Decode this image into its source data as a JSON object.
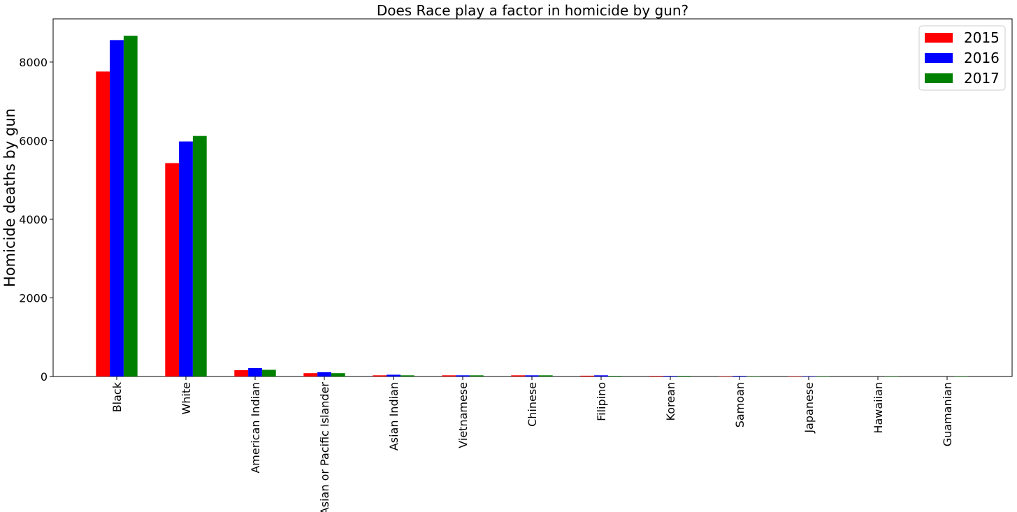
{
  "chart_data": {
    "type": "bar",
    "title": "Does Race play a factor in homicide by gun?",
    "xlabel": "",
    "ylabel": "Homicide deaths by gun",
    "ylim": [
      0,
      9100
    ],
    "yticks": [
      0,
      2000,
      4000,
      6000,
      8000
    ],
    "ytick_labels": [
      "0",
      "2000",
      "4000",
      "6000",
      "8000"
    ],
    "categories": [
      "Black",
      "White",
      "American Indian",
      "Asian or Pacific Islander",
      "Asian Indian",
      "Vietnamese",
      "Chinese",
      "Filipino",
      "Korean",
      "Samoan",
      "Japanese",
      "Hawaiian",
      "Guamanian"
    ],
    "series": [
      {
        "name": "2015",
        "color": "#ff0000",
        "values": [
          7760,
          5430,
          160,
          85,
          30,
          30,
          30,
          20,
          15,
          10,
          10,
          0,
          0
        ]
      },
      {
        "name": "2016",
        "color": "#0000ff",
        "values": [
          8560,
          5980,
          215,
          110,
          45,
          30,
          30,
          30,
          15,
          15,
          10,
          0,
          0
        ]
      },
      {
        "name": "2017",
        "color": "#008000",
        "values": [
          8670,
          6120,
          170,
          85,
          30,
          30,
          30,
          15,
          15,
          10,
          10,
          10,
          10
        ]
      }
    ],
    "grid": false,
    "legend": "top-right"
  }
}
